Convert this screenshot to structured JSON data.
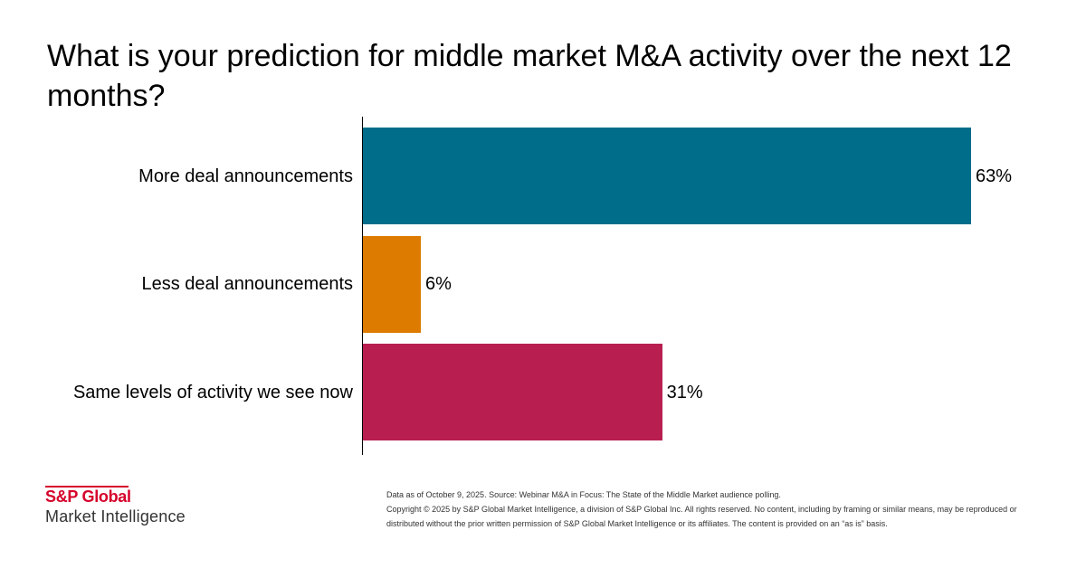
{
  "chart_data": {
    "type": "bar",
    "orientation": "horizontal",
    "title": "What is your prediction for middle market M&A activity over the next 12 months?",
    "categories": [
      "More deal announcements",
      "Less deal announcements",
      "Same levels of activity we see now"
    ],
    "values": [
      63,
      6,
      31
    ],
    "value_labels": [
      "63%",
      "6%",
      "31%"
    ],
    "colors": [
      "#006d8a",
      "#dd7a00",
      "#b81f50"
    ],
    "xlim": [
      0,
      63
    ],
    "xlabel": "",
    "ylabel": "",
    "grid": false
  },
  "logo": {
    "line1": "S&P Global",
    "line2": "Market Intelligence"
  },
  "footnote": {
    "source": "Data as of October 9, 2025. Source: Webinar M&A in Focus: The State of the Middle Market audience polling.",
    "copyright": "Copyright © 2025 by S&P Global Market Intelligence, a division of S&P Global Inc. All rights reserved. No content, including by framing or similar means, may be reproduced or distributed without the prior written permission of S&P Global Market Intelligence or its affiliates. The content is provided on an “as is” basis."
  }
}
